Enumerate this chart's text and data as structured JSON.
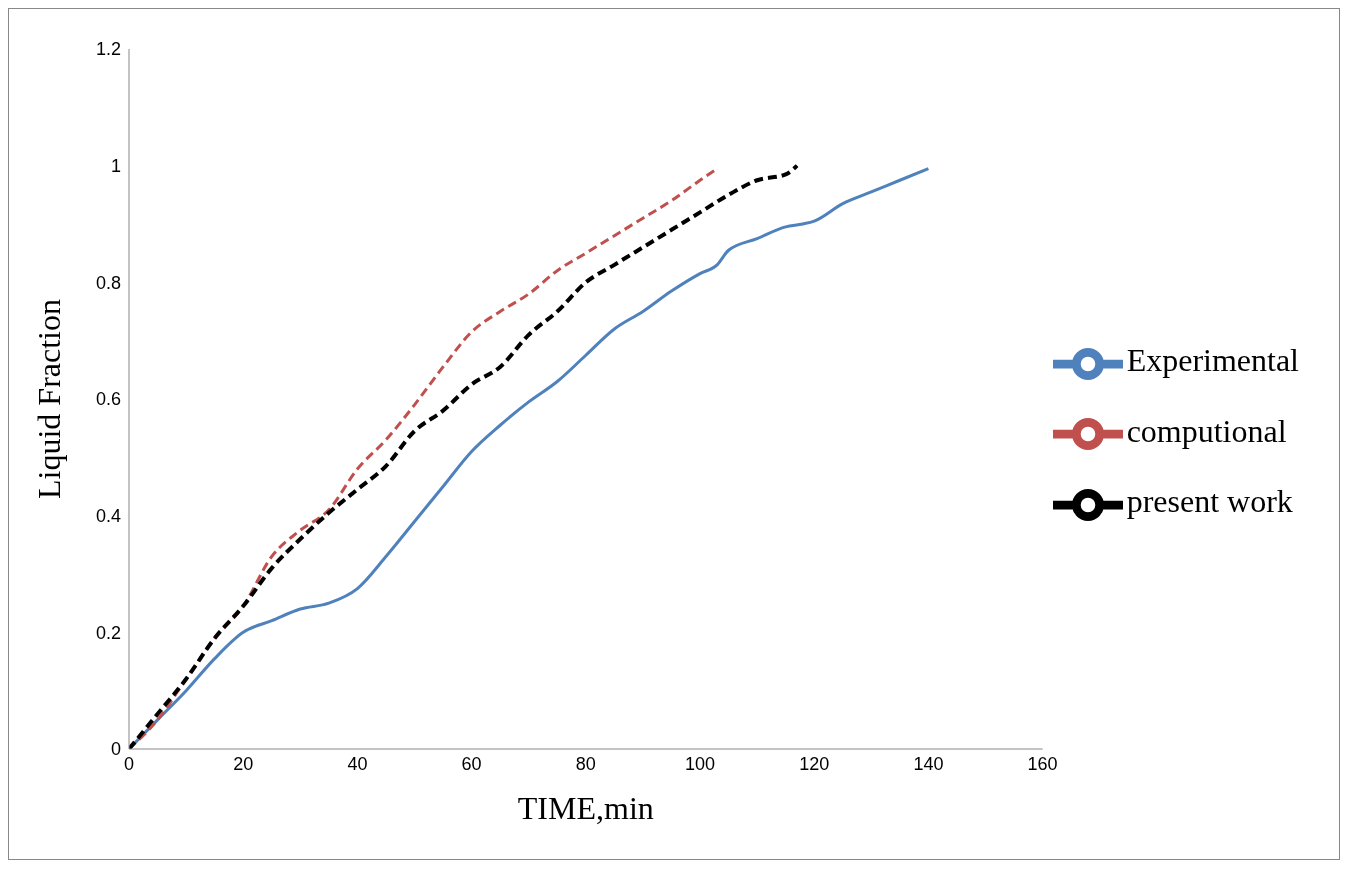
{
  "chart_data": {
    "type": "line",
    "xlabel": "TIME,min",
    "ylabel": "Liquid Fraction",
    "xlim": [
      0,
      160
    ],
    "xticks": [
      0,
      20,
      40,
      60,
      80,
      100,
      120,
      140,
      160
    ],
    "ylim": [
      0,
      1.2
    ],
    "yticks": [
      0,
      0.2,
      0.4,
      0.6,
      0.8,
      1,
      1.2
    ],
    "grid": false,
    "legend": "right",
    "marker": "none",
    "series": [
      {
        "name": "Experimental",
        "color": "#4f81bd",
        "line_style": "solid",
        "x": [
          0,
          5,
          10,
          15,
          20,
          25,
          30,
          35,
          40,
          45,
          50,
          55,
          60,
          65,
          70,
          75,
          80,
          85,
          90,
          95,
          100,
          103,
          105,
          110,
          115,
          118,
          120,
          125,
          130,
          135,
          140
        ],
        "values": [
          0,
          0.05,
          0.1,
          0.155,
          0.2,
          0.22,
          0.24,
          0.25,
          0.275,
          0.33,
          0.39,
          0.45,
          0.51,
          0.555,
          0.595,
          0.63,
          0.675,
          0.72,
          0.75,
          0.785,
          0.815,
          0.83,
          0.855,
          0.875,
          0.895,
          0.9,
          0.905,
          0.935,
          0.955,
          0.975,
          0.995
        ]
      },
      {
        "name": "computional",
        "color": "#c0504d",
        "line_style": "dashed",
        "x": [
          0,
          5,
          10,
          15,
          20,
          25,
          30,
          35,
          40,
          45,
          50,
          55,
          60,
          65,
          70,
          75,
          80,
          85,
          90,
          95,
          100,
          103
        ],
        "values": [
          0,
          0.05,
          0.12,
          0.19,
          0.245,
          0.33,
          0.375,
          0.41,
          0.48,
          0.53,
          0.59,
          0.655,
          0.715,
          0.75,
          0.78,
          0.82,
          0.85,
          0.88,
          0.91,
          0.94,
          0.975,
          0.995
        ]
      },
      {
        "name": "present work",
        "color": "#000000",
        "line_style": "dashed",
        "x": [
          0,
          5,
          10,
          15,
          20,
          25,
          30,
          35,
          40,
          45,
          50,
          55,
          60,
          65,
          70,
          75,
          80,
          85,
          90,
          95,
          100,
          105,
          110,
          115,
          117
        ],
        "values": [
          0,
          0.06,
          0.12,
          0.19,
          0.245,
          0.31,
          0.36,
          0.405,
          0.445,
          0.485,
          0.545,
          0.58,
          0.625,
          0.655,
          0.71,
          0.75,
          0.8,
          0.83,
          0.86,
          0.89,
          0.92,
          0.95,
          0.975,
          0.985,
          1.0
        ]
      }
    ]
  }
}
